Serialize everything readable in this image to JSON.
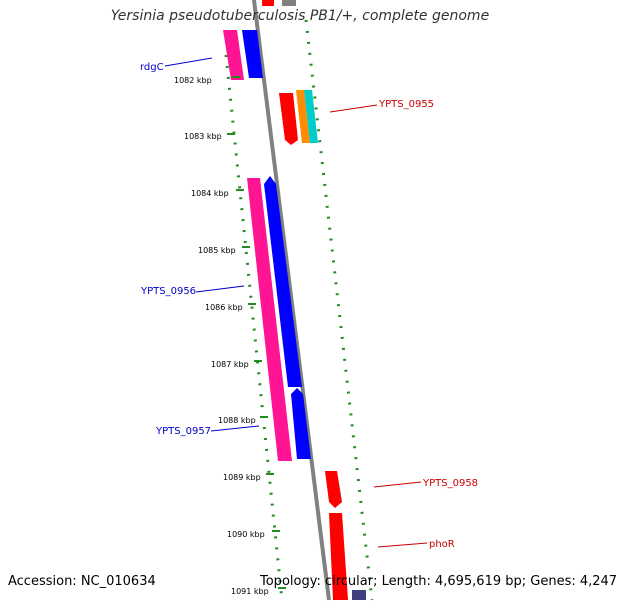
{
  "title": "Yersinia pseudotuberculosis PB1/+, complete genome",
  "footer": {
    "accession": "Accession: NC_010634",
    "topology": "Topology: circular; Length: 4,695,619 bp; Genes: 4,247"
  },
  "ticks": [
    "1082 kbp",
    "1083 kbp",
    "1084 kbp",
    "1085 kbp",
    "1086 kbp",
    "1087 kbp",
    "1088 kbp",
    "1089 kbp",
    "1090 kbp",
    "1091 kbp"
  ],
  "gene_labels": {
    "rdgC": "rdgC",
    "ypts0955": "YPTS_0955",
    "ypts0956": "YPTS_0956",
    "ypts0957": "YPTS_0957",
    "ypts0958": "YPTS_0958",
    "phoR": "phoR"
  },
  "colors": {
    "magenta": "#ff1493",
    "blue": "#0000ff",
    "red": "#ff0000",
    "orange": "#ff8c00",
    "cyan": "#00cccc",
    "slate": "#404080",
    "backbone": "#808080",
    "gc_dots": "#228b22"
  }
}
